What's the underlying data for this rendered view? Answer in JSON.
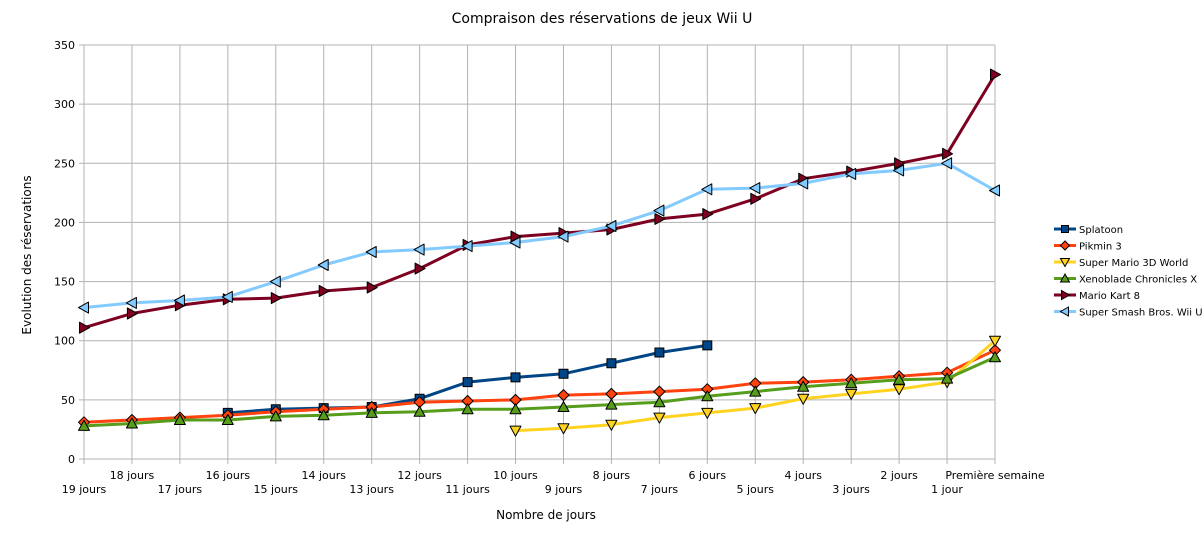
{
  "chart_data": {
    "type": "line",
    "title": "Compraison des réservations de jeux Wii U",
    "xlabel": "Nombre de jours",
    "ylabel": "Evolution des réservations",
    "ylim": [
      0,
      350
    ],
    "yticks": [
      0,
      50,
      100,
      150,
      200,
      250,
      300,
      350
    ],
    "grid": true,
    "legend_position": "right",
    "categories": [
      "19 jours",
      "18 jours",
      "17 jours",
      "16 jours",
      "15 jours",
      "14 jours",
      "13 jours",
      "12 jours",
      "11 jours",
      "10 jours",
      "9 jours",
      "8 jours",
      "7 jours",
      "6 jours",
      "5 jours",
      "4 jours",
      "3 jours",
      "2 jours",
      "1 jour",
      "Première semaine"
    ],
    "series": [
      {
        "name": "Splatoon",
        "color": "#004586",
        "marker": "square",
        "values": [
          null,
          null,
          null,
          39,
          42,
          43,
          44,
          51,
          65,
          69,
          72,
          81,
          90,
          96,
          null,
          null,
          null,
          null,
          null,
          null
        ]
      },
      {
        "name": "Pikmin 3",
        "color": "#ff420e",
        "marker": "diamond",
        "values": [
          31,
          33,
          35,
          37,
          40,
          42,
          44,
          48,
          49,
          50,
          54,
          55,
          57,
          59,
          64,
          65,
          67,
          70,
          73,
          92
        ]
      },
      {
        "name": "Super Mario 3D World",
        "color": "#ffd320",
        "marker": "triangle-down",
        "values": [
          null,
          null,
          null,
          null,
          null,
          null,
          null,
          null,
          null,
          24,
          26,
          29,
          35,
          39,
          43,
          51,
          55,
          59,
          65,
          100
        ]
      },
      {
        "name": "Xenoblade Chronicles X",
        "color": "#579d1c",
        "marker": "triangle-up",
        "values": [
          28,
          30,
          33,
          33,
          36,
          37,
          39,
          40,
          42,
          42,
          44,
          46,
          48,
          53,
          57,
          61,
          64,
          67,
          68,
          86
        ]
      },
      {
        "name": "Mario Kart 8",
        "color": "#7e0021",
        "marker": "triangle-right",
        "values": [
          111,
          123,
          130,
          135,
          136,
          142,
          145,
          161,
          181,
          188,
          191,
          194,
          203,
          207,
          220,
          237,
          243,
          250,
          258,
          325
        ]
      },
      {
        "name": "Super Smash Bros. Wii U",
        "color": "#83caff",
        "marker": "triangle-left",
        "values": [
          128,
          132,
          134,
          137,
          150,
          164,
          175,
          177,
          180,
          183,
          188,
          197,
          210,
          228,
          229,
          233,
          241,
          244,
          250,
          227
        ]
      }
    ]
  }
}
